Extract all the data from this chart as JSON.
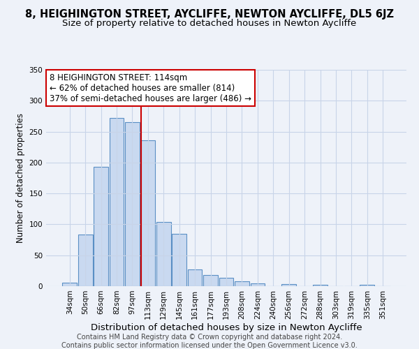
{
  "title": "8, HEIGHINGTON STREET, AYCLIFFE, NEWTON AYCLIFFE, DL5 6JZ",
  "subtitle": "Size of property relative to detached houses in Newton Aycliffe",
  "xlabel": "Distribution of detached houses by size in Newton Aycliffe",
  "ylabel": "Number of detached properties",
  "categories": [
    "34sqm",
    "50sqm",
    "66sqm",
    "82sqm",
    "97sqm",
    "113sqm",
    "129sqm",
    "145sqm",
    "161sqm",
    "177sqm",
    "193sqm",
    "208sqm",
    "224sqm",
    "240sqm",
    "256sqm",
    "272sqm",
    "288sqm",
    "303sqm",
    "319sqm",
    "335sqm",
    "351sqm"
  ],
  "bar_values": [
    6,
    83,
    193,
    272,
    265,
    236,
    104,
    85,
    27,
    18,
    13,
    8,
    5,
    0,
    3,
    0,
    2,
    0,
    0,
    2,
    0
  ],
  "bar_color": "#c9d9f0",
  "bar_edge_color": "#5a8fc4",
  "bar_edge_width": 0.8,
  "vline_x_index": 5,
  "vline_color": "#cc0000",
  "annotation_title": "8 HEIGHINGTON STREET: 114sqm",
  "annotation_line1": "← 62% of detached houses are smaller (814)",
  "annotation_line2": "37% of semi-detached houses are larger (486) →",
  "annotation_box_color": "#ffffff",
  "annotation_border_color": "#cc0000",
  "ylim": [
    0,
    350
  ],
  "yticks": [
    0,
    50,
    100,
    150,
    200,
    250,
    300,
    350
  ],
  "grid_color": "#c8d4e8",
  "bg_color": "#eef2f9",
  "footer1": "Contains HM Land Registry data © Crown copyright and database right 2024.",
  "footer2": "Contains public sector information licensed under the Open Government Licence v3.0.",
  "title_fontsize": 10.5,
  "subtitle_fontsize": 9.5,
  "xlabel_fontsize": 9.5,
  "ylabel_fontsize": 8.5,
  "tick_fontsize": 7.5,
  "annotation_fontsize": 8.5,
  "footer_fontsize": 7.0
}
